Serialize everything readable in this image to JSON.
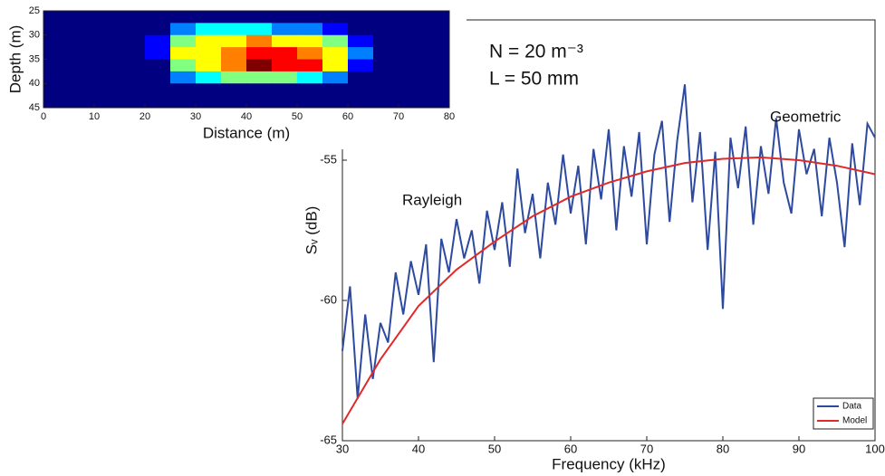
{
  "chart_data": [
    {
      "type": "line",
      "xlabel": "Frequency (kHz)",
      "ylabel": "Sᵥ (dB)",
      "xlim": [
        30,
        100
      ],
      "ylim": [
        -65,
        -50
      ],
      "xticks": [
        30,
        40,
        50,
        60,
        70,
        80,
        90,
        100
      ],
      "yticks": [
        -65,
        -60,
        -55
      ],
      "legend": "lower-right",
      "annotations": [
        "N = 20 m⁻³",
        "L = 50 mm",
        "Rayleigh",
        "Geometric"
      ],
      "series": [
        {
          "name": "Data",
          "color": "#2e4aa0",
          "x": [
            30,
            31,
            32,
            33,
            34,
            35,
            36,
            37,
            38,
            39,
            40,
            41,
            42,
            43,
            44,
            45,
            46,
            47,
            48,
            49,
            50,
            51,
            52,
            53,
            54,
            55,
            56,
            57,
            58,
            59,
            60,
            61,
            62,
            63,
            64,
            65,
            66,
            67,
            68,
            69,
            70,
            71,
            72,
            73,
            74,
            75,
            76,
            77,
            78,
            79,
            80,
            81,
            82,
            83,
            84,
            85,
            86,
            87,
            88,
            89,
            90,
            91,
            92,
            93,
            94,
            95,
            96,
            97,
            98,
            99,
            100
          ],
          "values": [
            -61.8,
            -59.5,
            -63.5,
            -60.5,
            -62.8,
            -60.8,
            -61.5,
            -59.0,
            -60.5,
            -58.6,
            -59.8,
            -58.0,
            -62.2,
            -57.8,
            -59.0,
            -57.1,
            -58.5,
            -57.5,
            -59.4,
            -56.8,
            -58.2,
            -56.5,
            -58.8,
            -55.3,
            -57.6,
            -56.2,
            -58.5,
            -55.8,
            -57.3,
            -54.8,
            -56.9,
            -55.2,
            -58.0,
            -54.6,
            -56.4,
            -53.9,
            -57.5,
            -54.5,
            -56.3,
            -54.0,
            -58.0,
            -54.8,
            -53.6,
            -57.2,
            -54.3,
            -52.3,
            -56.5,
            -54.0,
            -58.2,
            -54.7,
            -60.3,
            -54.2,
            -56.0,
            -53.8,
            -57.3,
            -54.5,
            -56.2,
            -53.5,
            -55.8,
            -56.9,
            -53.9,
            -55.5,
            -54.6,
            -57.0,
            -54.2,
            -55.8,
            -58.1,
            -54.4,
            -56.6,
            -53.7,
            -54.2
          ]
        },
        {
          "name": "Model",
          "color": "#e02a2a",
          "x": [
            30,
            35,
            40,
            45,
            50,
            55,
            60,
            65,
            70,
            75,
            80,
            85,
            90,
            95,
            100
          ],
          "values": [
            -64.4,
            -62.1,
            -60.2,
            -58.9,
            -57.9,
            -57.0,
            -56.3,
            -55.8,
            -55.4,
            -55.1,
            -54.95,
            -54.9,
            -55.0,
            -55.2,
            -55.5
          ]
        }
      ]
    },
    {
      "type": "heatmap",
      "xlabel": "Distance (m)",
      "ylabel": "Depth (m)",
      "xlim": [
        0,
        80
      ],
      "ylim": [
        25,
        45
      ],
      "y_inverted": true,
      "xticks": [
        0,
        10,
        20,
        30,
        40,
        50,
        60,
        70,
        80
      ],
      "yticks": [
        25,
        30,
        35,
        40,
        45
      ],
      "z": [
        [
          1,
          1,
          1,
          1,
          1,
          1,
          1,
          1,
          1,
          1,
          1,
          1,
          1,
          1,
          1,
          1
        ],
        [
          1,
          1,
          1,
          1,
          1,
          3,
          4,
          4,
          4,
          3,
          3,
          2,
          1,
          1,
          1,
          1
        ],
        [
          1,
          1,
          1,
          1,
          2,
          5,
          6,
          6,
          7,
          6,
          6,
          5,
          2,
          1,
          1,
          1
        ],
        [
          1,
          1,
          1,
          1,
          2,
          6,
          6,
          7,
          8,
          8,
          7,
          6,
          3,
          1,
          1,
          1
        ],
        [
          1,
          1,
          1,
          1,
          1,
          5,
          6,
          7,
          9,
          8,
          8,
          6,
          2,
          1,
          1,
          1
        ],
        [
          1,
          1,
          1,
          1,
          1,
          3,
          4,
          5,
          5,
          5,
          4,
          3,
          1,
          1,
          1,
          1
        ],
        [
          1,
          1,
          1,
          1,
          1,
          1,
          1,
          1,
          1,
          1,
          1,
          1,
          1,
          1,
          1,
          1
        ],
        [
          1,
          1,
          1,
          1,
          1,
          1,
          1,
          1,
          1,
          1,
          1,
          1,
          1,
          1,
          1,
          1
        ]
      ]
    }
  ]
}
